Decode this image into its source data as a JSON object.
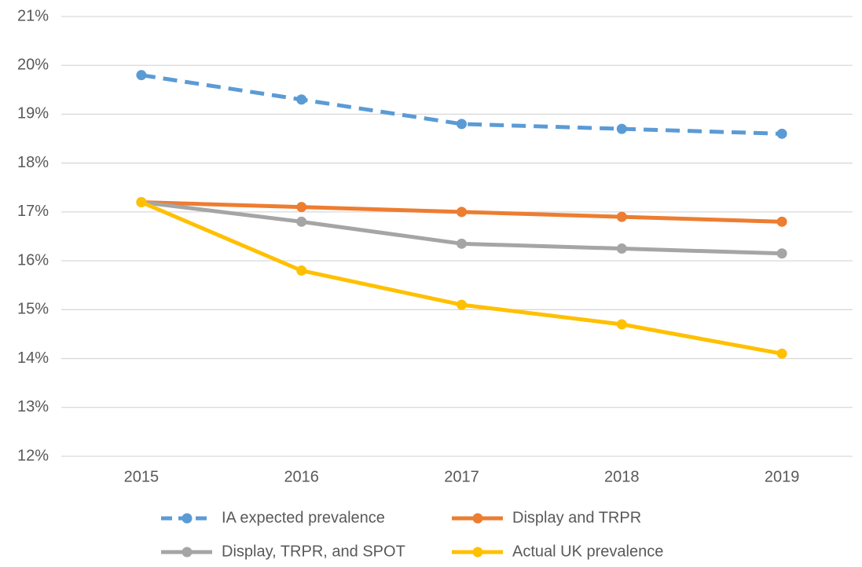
{
  "chart_data": {
    "type": "line",
    "categories": [
      "2015",
      "2016",
      "2017",
      "2018",
      "2019"
    ],
    "series": [
      {
        "name": "IA expected prevalence",
        "color": "#5b9bd5",
        "dash": true,
        "values": [
          19.8,
          19.3,
          18.8,
          18.7,
          18.6
        ]
      },
      {
        "name": "Display and TRPR",
        "color": "#ed7d31",
        "values": [
          17.2,
          17.1,
          17.0,
          16.9,
          16.8
        ]
      },
      {
        "name": "Display, TRPR, and SPOT",
        "color": "#a5a5a5",
        "values": [
          17.2,
          16.8,
          16.35,
          16.25,
          16.15
        ]
      },
      {
        "name": "Actual UK prevalence",
        "color": "#ffc000",
        "values": [
          17.2,
          15.8,
          15.1,
          14.7,
          14.1
        ]
      }
    ],
    "ylim": [
      12,
      21
    ],
    "yticks": [
      {
        "value": 12,
        "label": "12%"
      },
      {
        "value": 13,
        "label": "13%"
      },
      {
        "value": 14,
        "label": "14%"
      },
      {
        "value": 15,
        "label": "15%"
      },
      {
        "value": 16,
        "label": "16%"
      },
      {
        "value": 17,
        "label": "17%"
      },
      {
        "value": 18,
        "label": "18%"
      },
      {
        "value": 19,
        "label": "19%"
      },
      {
        "value": 20,
        "label": "20%"
      },
      {
        "value": 21,
        "label": "21%"
      }
    ],
    "grid": true,
    "legend": "bottom"
  }
}
